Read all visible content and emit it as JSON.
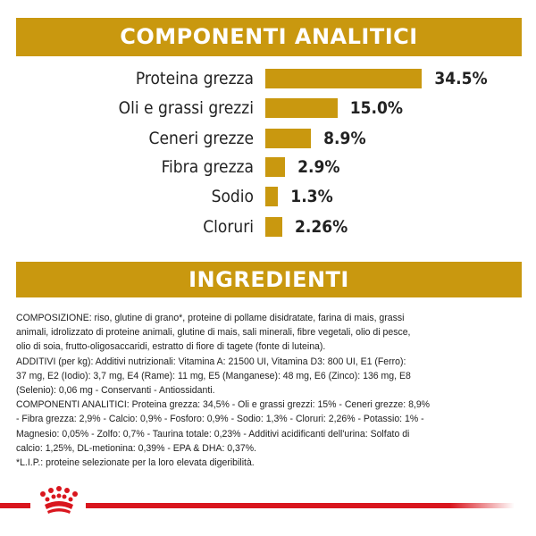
{
  "header": {
    "title": "COMPONENTI ANALITICI"
  },
  "ingredients_header": {
    "title": "INGREDIENTI"
  },
  "colors": {
    "band": "#C9980F",
    "brand_red": "#D9161E"
  },
  "chart_data": {
    "type": "bar",
    "orientation": "horizontal",
    "title": "COMPONENTI ANALITICI",
    "categories": [
      "Proteina grezza",
      "Oli e grassi grezzi",
      "Ceneri grezze",
      "Fibra grezza",
      "Sodio",
      "Cloruri"
    ],
    "values": [
      34.5,
      15.0,
      8.9,
      2.9,
      1.3,
      2.26
    ],
    "value_labels": [
      "34.5%",
      "15.0%",
      "8.9%",
      "2.9%",
      "1.3%",
      "2.26%"
    ],
    "grid": false
  },
  "ingredients": {
    "lines": [
      "COMPOSIZIONE: riso, glutine di grano*, proteine di pollame disidratate, farina di mais, grassi",
      "animali, idrolizzato di proteine animali, glutine di mais, sali minerali, fibre vegetali, olio di pesce,",
      "olio di soia, frutto-oligosaccaridi, estratto di fiore di tagete (fonte di luteina).",
      "ADDITIVI (per kg): Additivi nutrizionali: Vitamina A: 21500 UI, Vitamina D3: 800 UI, E1 (Ferro):",
      "37 mg, E2 (Iodio): 3,7 mg, E4 (Rame): 11 mg, E5 (Manganese): 48 mg, E6 (Zinco): 136 mg, E8",
      "(Selenio): 0,06 mg - Conservanti - Antiossidanti.",
      "COMPONENTI ANALITICI: Proteina grezza: 34,5% - Oli e grassi grezzi: 15% - Ceneri grezze: 8,9%",
      "- Fibra grezza: 2,9% - Calcio: 0,9% - Fosforo: 0,9% - Sodio: 1,3% - Cloruri: 2,26% - Potassio: 1% -",
      "Magnesio: 0,05% - Zolfo: 0,7% - Taurina totale: 0,23% - Additivi acidificanti dell'urina: Solfato di",
      "calcio: 1,25%, DL-metionina: 0,39% - EPA & DHA: 0,37%.",
      "*L.I.P.: proteine selezionate per la loro elevata digeribilità."
    ]
  },
  "logo": {
    "name": "royal-canin-crown-icon"
  }
}
